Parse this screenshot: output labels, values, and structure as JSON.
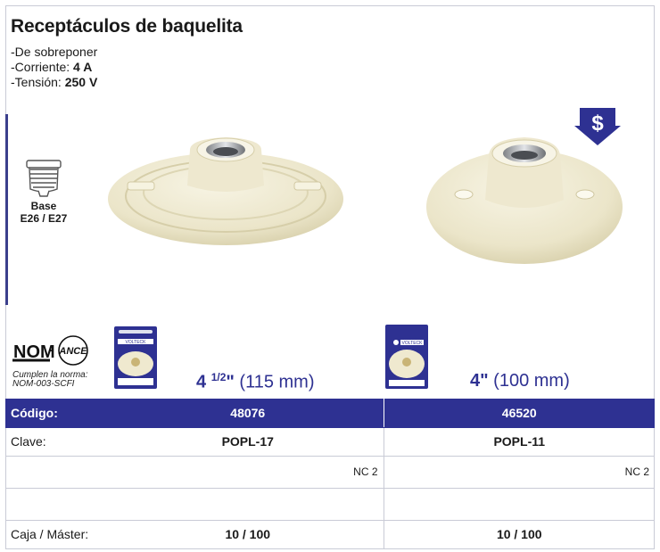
{
  "title": "Receptáculos de baquelita",
  "specs": {
    "line1": "De sobreponer",
    "line2_label": "Corriente: ",
    "line2_value": "4 A",
    "line3_label": "Tensión: ",
    "line3_value": "250 V"
  },
  "base": {
    "label1": "Base",
    "label2": "E26 / E27"
  },
  "certification": {
    "note_line1": "Cumplen la norma:",
    "note_line2": "NOM-003-SCFI"
  },
  "products": [
    {
      "size_whole": "4",
      "size_fraction": "1/2",
      "size_unit": "\"",
      "size_mm": " (115 mm)",
      "codigo": "48076",
      "clave": "POPL-17",
      "nc": "NC 2",
      "caja": "10 / 100"
    },
    {
      "size_whole": "4",
      "size_unit": "\"",
      "size_mm": " (100 mm)",
      "codigo": "46520",
      "clave": "POPL-11",
      "nc": "NC 2",
      "caja": "10 / 100"
    }
  ],
  "table": {
    "codigo_label": "Código:",
    "clave_label": "Clave:",
    "caja_label": "Caja / Máster:"
  },
  "colors": {
    "brand": "#2e3192",
    "ivory": "#ede8cf"
  }
}
